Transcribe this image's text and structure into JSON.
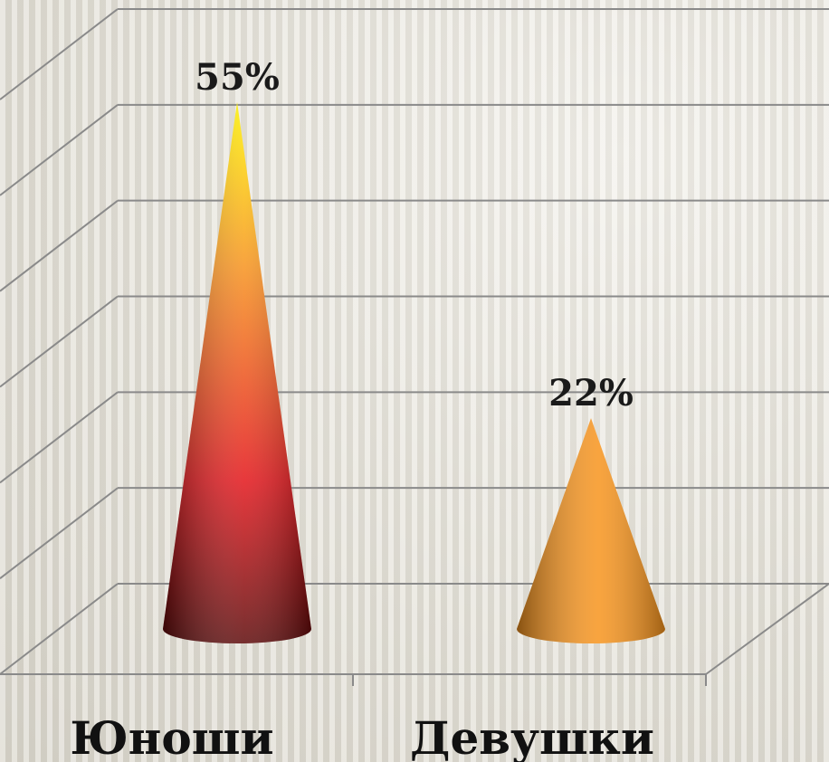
{
  "chart_data": {
    "type": "cone",
    "categories": [
      "Юноши",
      "Девушки"
    ],
    "values": [
      55,
      22
    ],
    "value_labels": [
      "55%",
      "22%"
    ],
    "colors": [
      "#e3151a",
      "#f7941d"
    ],
    "ylim": [
      0,
      60
    ],
    "yticks": [
      0,
      10,
      20,
      30,
      40,
      50,
      60
    ],
    "grid": true
  }
}
